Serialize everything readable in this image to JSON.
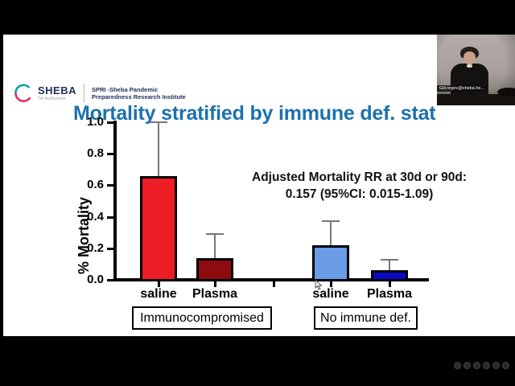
{
  "window": {
    "bg": "#000000"
  },
  "slide": {
    "bg": "#ffffff"
  },
  "logo": {
    "name": "SHEBA",
    "tagline": "Tel HaShomer",
    "institute_line1": "SPRI -Sheba Pandemic",
    "institute_line2": "Preparedness Research Institute",
    "navy": "#21305e",
    "teal": "#0aa6a0",
    "crimson": "#e5315e"
  },
  "title": {
    "text": "Mortality stratified by immune def. stat",
    "color": "#1c70ae"
  },
  "webcam": {
    "participant_label": "Gili.regev@sheba.he..."
  },
  "chart_data": {
    "type": "bar",
    "title": "",
    "xlabel": "",
    "ylabel": "% Mortality",
    "ylim": [
      0.0,
      1.0
    ],
    "yticks": [
      "0.0",
      "0.2",
      "0.4",
      "0.6",
      "0.8",
      "1.0"
    ],
    "grid": false,
    "legend": "none",
    "error_color": "#777777",
    "annotation": {
      "line1": "Adjusted Mortality RR at 30d or 90d:",
      "line2": "0.157 (95%CI: 0.015-1.09)"
    },
    "groups": [
      {
        "label": "Immunocompromised",
        "bars": [
          {
            "category": "saline",
            "value": 0.66,
            "error_top": 1.0,
            "color": "#ee1c24"
          },
          {
            "category": "Plasma",
            "value": 0.14,
            "error_top": 0.29,
            "color": "#8e0b10"
          }
        ]
      },
      {
        "label": "No immune def.",
        "bars": [
          {
            "category": "saline",
            "value": 0.22,
            "error_top": 0.37,
            "color": "#6b9ce8"
          },
          {
            "category": "Plasma",
            "value": 0.06,
            "error_top": 0.13,
            "color": "#0a0ac0"
          }
        ]
      }
    ]
  }
}
